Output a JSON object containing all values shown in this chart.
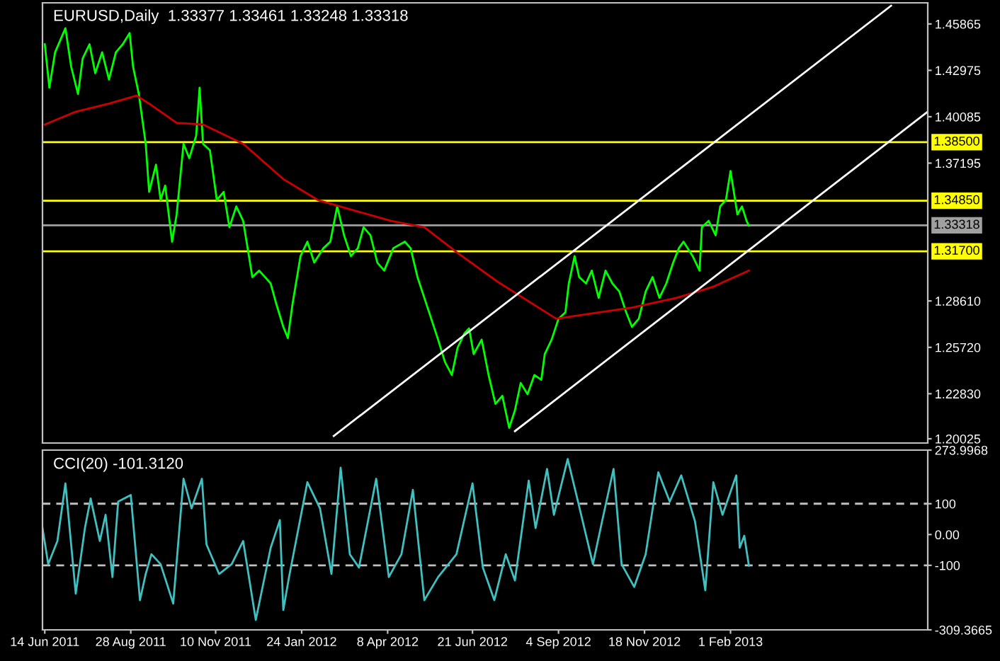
{
  "chart_data": [
    {
      "type": "line",
      "title": "EURUSD,Daily  1.33377 1.33461 1.33248 1.33318",
      "tick_labels": "y",
      "grid": false,
      "legend": false,
      "xlim": [
        "2011-06-12",
        "2013-07-23"
      ],
      "ylim": [
        1.1976,
        1.4718
      ],
      "yticks": [
        {
          "value": 1.45865,
          "label": "1.45865"
        },
        {
          "value": 1.42975,
          "label": "1.42975"
        },
        {
          "value": 1.40085,
          "label": "1.40085"
        },
        {
          "value": 1.37195,
          "label": "1.37195"
        },
        {
          "value": 1.2861,
          "label": "1.28610"
        },
        {
          "value": 1.2572,
          "label": "1.25720"
        },
        {
          "value": 1.2283,
          "label": "1.22830"
        },
        {
          "value": 1.20025,
          "label": "1.20025"
        }
      ],
      "ref_lines": [
        {
          "axis": "y",
          "value": 1.385,
          "label": "1.38500",
          "color": "#ffff00"
        },
        {
          "axis": "y",
          "value": 1.3485,
          "label": "1.34850",
          "color": "#ffff00"
        },
        {
          "axis": "y",
          "value": 1.33318,
          "label": "1.33318",
          "color": "#a0a0a0"
        },
        {
          "axis": "y",
          "value": 1.317,
          "label": "1.31700",
          "color": "#ffff00"
        }
      ],
      "series": [
        {
          "color": "#00ff00",
          "x": [
            "2011-06-14",
            "2011-06-18",
            "2011-06-23",
            "2011-07-02",
            "2011-07-07",
            "2011-07-13",
            "2011-07-17",
            "2011-07-23",
            "2011-07-28",
            "2011-08-03",
            "2011-08-09",
            "2011-08-15",
            "2011-08-21",
            "2011-08-27",
            "2011-08-30",
            "2011-09-04",
            "2011-09-10",
            "2011-09-13",
            "2011-09-19",
            "2011-09-23",
            "2011-09-27",
            "2011-10-03",
            "2011-10-07",
            "2011-10-13",
            "2011-10-18",
            "2011-10-24",
            "2011-10-27",
            "2011-10-30",
            "2011-11-05",
            "2011-11-11",
            "2011-11-17",
            "2011-11-22",
            "2011-11-28",
            "2011-12-04",
            "2011-12-12",
            "2011-12-18",
            "2011-12-28",
            "2012-01-02",
            "2012-01-08",
            "2012-01-12",
            "2012-01-16",
            "2012-01-23",
            "2012-01-29",
            "2012-02-04",
            "2012-02-12",
            "2012-02-18",
            "2012-02-24",
            "2012-03-01",
            "2012-03-07",
            "2012-03-13",
            "2012-03-18",
            "2012-03-24",
            "2012-03-30",
            "2012-04-05",
            "2012-04-13",
            "2012-04-23",
            "2012-04-28",
            "2012-05-04",
            "2012-05-10",
            "2012-05-16",
            "2012-05-22",
            "2012-05-28",
            "2012-06-03",
            "2012-06-08",
            "2012-06-14",
            "2012-06-18",
            "2012-06-22",
            "2012-06-29",
            "2012-07-05",
            "2012-07-11",
            "2012-07-17",
            "2012-07-23",
            "2012-07-28",
            "2012-08-02",
            "2012-08-08",
            "2012-08-14",
            "2012-08-20",
            "2012-08-23",
            "2012-08-29",
            "2012-09-04",
            "2012-09-10",
            "2012-09-13",
            "2012-09-18",
            "2012-09-22",
            "2012-09-28",
            "2012-10-03",
            "2012-10-09",
            "2012-10-15",
            "2012-10-21",
            "2012-10-27",
            "2012-11-02",
            "2012-11-07",
            "2012-11-13",
            "2012-11-19",
            "2012-11-25",
            "2012-12-01",
            "2012-12-07",
            "2012-12-13",
            "2012-12-18",
            "2012-12-22",
            "2012-12-30",
            "2013-01-05",
            "2013-01-07",
            "2013-01-13",
            "2013-01-19",
            "2013-01-23",
            "2013-01-28",
            "2013-02-01",
            "2013-02-07",
            "2013-02-11",
            "2013-02-15",
            "2013-02-17"
          ],
          "values": [
            1.446,
            1.419,
            1.441,
            1.456,
            1.432,
            1.415,
            1.437,
            1.446,
            1.428,
            1.441,
            1.424,
            1.441,
            1.446,
            1.453,
            1.432,
            1.415,
            1.384,
            1.354,
            1.371,
            1.349,
            1.358,
            1.323,
            1.34,
            1.384,
            1.375,
            1.389,
            1.419,
            1.384,
            1.38,
            1.349,
            1.354,
            1.332,
            1.345,
            1.336,
            1.301,
            1.305,
            1.297,
            1.284,
            1.27,
            1.263,
            1.284,
            1.314,
            1.323,
            1.31,
            1.319,
            1.323,
            1.345,
            1.327,
            1.314,
            1.319,
            1.332,
            1.327,
            1.31,
            1.305,
            1.319,
            1.323,
            1.319,
            1.301,
            1.288,
            1.275,
            1.262,
            1.248,
            1.24,
            1.257,
            1.266,
            1.269,
            1.253,
            1.262,
            1.24,
            1.222,
            1.227,
            1.207,
            1.218,
            1.235,
            1.228,
            1.24,
            1.237,
            1.253,
            1.262,
            1.275,
            1.279,
            1.297,
            1.314,
            1.301,
            1.297,
            1.305,
            1.288,
            1.305,
            1.297,
            1.292,
            1.279,
            1.27,
            1.275,
            1.292,
            1.301,
            1.288,
            1.297,
            1.31,
            1.319,
            1.323,
            1.314,
            1.305,
            1.332,
            1.336,
            1.327,
            1.345,
            1.349,
            1.367,
            1.34,
            1.345,
            1.336,
            1.333
          ]
        },
        {
          "color": "#cc0000",
          "x": [
            "2011-06-14",
            "2011-07-11",
            "2011-08-09",
            "2011-09-02",
            "2011-09-13",
            "2011-10-07",
            "2011-10-30",
            "2011-12-04",
            "2012-01-08",
            "2012-02-07",
            "2012-03-07",
            "2012-04-11",
            "2012-05-10",
            "2012-06-08",
            "2012-07-13",
            "2012-09-02",
            "2012-09-30",
            "2012-11-07",
            "2012-12-16",
            "2013-01-17",
            "2013-02-17"
          ],
          "values": [
            1.396,
            1.404,
            1.409,
            1.414,
            1.409,
            1.397,
            1.396,
            1.384,
            1.362,
            1.349,
            1.343,
            1.336,
            1.332,
            1.316,
            1.298,
            1.275,
            1.278,
            1.282,
            1.288,
            1.295,
            1.305
          ]
        },
        {
          "color": "#ffffff",
          "x": [
            "2012-02-21",
            "2013-06-21"
          ],
          "values": [
            1.202,
            1.47
          ]
        },
        {
          "color": "#ffffff",
          "x": [
            "2012-07-28",
            "2013-07-23"
          ],
          "values": [
            1.205,
            1.404
          ]
        }
      ]
    },
    {
      "type": "line",
      "title": "CCI(20) -101.3120",
      "grid": false,
      "legend": false,
      "xlim": [
        "2011-06-12",
        "2013-07-23"
      ],
      "ylim": [
        -309.3665,
        273.9968
      ],
      "xticks": [
        {
          "value": "2011-06-14",
          "label": "14 Jun 2011"
        },
        {
          "value": "2011-08-28",
          "label": "28 Aug 2011"
        },
        {
          "value": "2011-11-10",
          "label": "10 Nov 2011"
        },
        {
          "value": "2012-01-24",
          "label": "24 Jan 2012"
        },
        {
          "value": "2012-04-08",
          "label": "8 Apr 2012"
        },
        {
          "value": "2012-06-21",
          "label": "21 Jun 2012"
        },
        {
          "value": "2012-09-04",
          "label": "4 Sep 2012"
        },
        {
          "value": "2012-11-18",
          "label": "18 Nov 2012"
        },
        {
          "value": "2013-02-01",
          "label": "1 Feb 2013"
        }
      ],
      "yticks": [
        {
          "value": 273.9968,
          "label": "273.9968"
        },
        100,
        {
          "value": 0,
          "label": "0.00"
        },
        -100,
        {
          "value": -309.3665,
          "label": "-309.3665"
        }
      ],
      "ref_lines": [
        {
          "axis": "y",
          "value": 100,
          "color": "#c0c0c0",
          "line_style": "dashed"
        },
        {
          "axis": "y",
          "value": -100,
          "color": "#c0c0c0",
          "line_style": "dashed"
        }
      ],
      "series": [
        {
          "color": "#40c0c0",
          "x": [
            "2011-06-12",
            "2011-06-17",
            "2011-06-25",
            "2011-07-02",
            "2011-07-11",
            "2011-07-19",
            "2011-07-24",
            "2011-08-01",
            "2011-08-06",
            "2011-08-12",
            "2011-08-17",
            "2011-08-28",
            "2011-09-05",
            "2011-09-10",
            "2011-09-15",
            "2011-09-23",
            "2011-10-04",
            "2011-10-13",
            "2011-10-20",
            "2011-10-29",
            "2011-11-02",
            "2011-11-13",
            "2011-11-24",
            "2011-12-04",
            "2011-12-15",
            "2011-12-28",
            "2012-01-05",
            "2012-01-08",
            "2012-01-13",
            "2012-01-29",
            "2012-02-09",
            "2012-02-19",
            "2012-02-27",
            "2012-03-06",
            "2012-03-14",
            "2012-03-29",
            "2012-04-09",
            "2012-04-20",
            "2012-04-30",
            "2012-05-10",
            "2012-05-22",
            "2012-06-07",
            "2012-06-21",
            "2012-06-30",
            "2012-07-10",
            "2012-07-20",
            "2012-07-28",
            "2012-08-09",
            "2012-08-15",
            "2012-08-25",
            "2012-08-31",
            "2012-09-12",
            "2012-09-21",
            "2012-10-04",
            "2012-10-12",
            "2012-10-22",
            "2012-10-29",
            "2012-11-09",
            "2012-11-19",
            "2012-11-30",
            "2012-12-10",
            "2012-12-20",
            "2013-01-01",
            "2013-01-10",
            "2013-01-17",
            "2013-01-25",
            "2013-02-06",
            "2013-02-09",
            "2013-02-13",
            "2013-02-17"
          ],
          "values": [
            21,
            -96,
            -21,
            166,
            -192,
            21,
            117,
            -21,
            64,
            -138,
            107,
            128,
            -213,
            -128,
            -64,
            -96,
            -224,
            181,
            85,
            181,
            -32,
            -128,
            -96,
            -21,
            -277,
            -43,
            47,
            -245,
            -138,
            170,
            85,
            -128,
            217,
            -64,
            -107,
            181,
            -138,
            -64,
            145,
            -213,
            -138,
            -64,
            166,
            -107,
            -213,
            -64,
            -149,
            175,
            21,
            213,
            64,
            245,
            107,
            -96,
            43,
            213,
            -96,
            -170,
            -64,
            202,
            107,
            192,
            43,
            -181,
            170,
            64,
            192,
            -43,
            -4,
            -101
          ]
        }
      ]
    }
  ]
}
